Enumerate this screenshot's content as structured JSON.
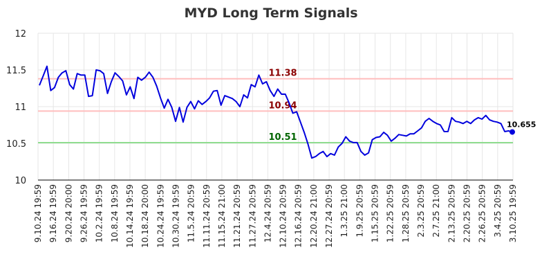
{
  "chart_data": {
    "type": "line",
    "title": "MYD Long Term Signals",
    "xlabel": "",
    "ylabel": "",
    "ylim": [
      10,
      12
    ],
    "yticks": [
      "10",
      "10.5",
      "11",
      "11.5",
      "12"
    ],
    "grid": true,
    "xtick_labels": [
      "9.10.24 19:59",
      "9.16.24 19:59",
      "9.20.24 20:00",
      "9.26.24 19:59",
      "10.2.24 19:59",
      "10.8.24 19:59",
      "10.14.24 19:59",
      "10.18.24 20:00",
      "10.24.24 19:59",
      "10.30.24 19:59",
      "11.5.24 20:59",
      "11.11.24 20:59",
      "11.15.24 21:00",
      "11.21.24 20:59",
      "11.27.24 20:59",
      "12.4.24 20:59",
      "12.10.24 20:59",
      "12.16.24 20:59",
      "12.20.24 21:00",
      "12.27.24 20:59",
      "1.3.25 21:00",
      "1.9.25 20:59",
      "1.15.25 20:59",
      "1.22.25 20:59",
      "1.28.25 20:59",
      "2.3.25 20:59",
      "2.7.25 21:00",
      "2.13.25 20:59",
      "2.20.25 20:59",
      "2.26.25 20:59",
      "3.4.25 20:59",
      "3.10.25 19:59"
    ],
    "series": [
      {
        "color": "#0000dd",
        "values": [
          11.29,
          11.42,
          11.55,
          11.22,
          11.26,
          11.4,
          11.46,
          11.49,
          11.3,
          11.24,
          11.45,
          11.43,
          11.43,
          11.14,
          11.15,
          11.5,
          11.49,
          11.45,
          11.18,
          11.34,
          11.46,
          11.41,
          11.35,
          11.16,
          11.27,
          11.11,
          11.4,
          11.36,
          11.4,
          11.47,
          11.4,
          11.28,
          11.12,
          10.98,
          11.1,
          10.99,
          10.8,
          10.99,
          10.79,
          10.99,
          11.07,
          10.97,
          11.08,
          11.03,
          11.07,
          11.12,
          11.21,
          11.22,
          11.02,
          11.15,
          11.13,
          11.11,
          11.07,
          11.0,
          11.16,
          11.12,
          11.3,
          11.27,
          11.43,
          11.31,
          11.34,
          11.22,
          11.14,
          11.24,
          11.17,
          11.17,
          11.05,
          10.91,
          10.93,
          10.79,
          10.65,
          10.49,
          10.3,
          10.32,
          10.36,
          10.39,
          10.32,
          10.36,
          10.34,
          10.45,
          10.5,
          10.59,
          10.53,
          10.51,
          10.51,
          10.39,
          10.34,
          10.37,
          10.55,
          10.58,
          10.59,
          10.65,
          10.61,
          10.53,
          10.57,
          10.62,
          10.61,
          10.6,
          10.63,
          10.63,
          10.67,
          10.71,
          10.8,
          10.84,
          10.8,
          10.77,
          10.75,
          10.66,
          10.66,
          10.85,
          10.8,
          10.79,
          10.77,
          10.8,
          10.77,
          10.82,
          10.85,
          10.83,
          10.88,
          10.82,
          10.8,
          10.79,
          10.77,
          10.66,
          10.67,
          10.655
        ]
      }
    ],
    "levels": [
      {
        "value": 11.38,
        "label": "11.38",
        "line_color": "#ffbdbd",
        "label_color": "#8b0000"
      },
      {
        "value": 10.94,
        "label": "10.94",
        "line_color": "#ffbdbd",
        "label_color": "#8b0000"
      },
      {
        "value": 10.51,
        "label": "10.51",
        "line_color": "#8fdc8f",
        "label_color": "#006400"
      }
    ],
    "last_value_label": "10.655"
  }
}
